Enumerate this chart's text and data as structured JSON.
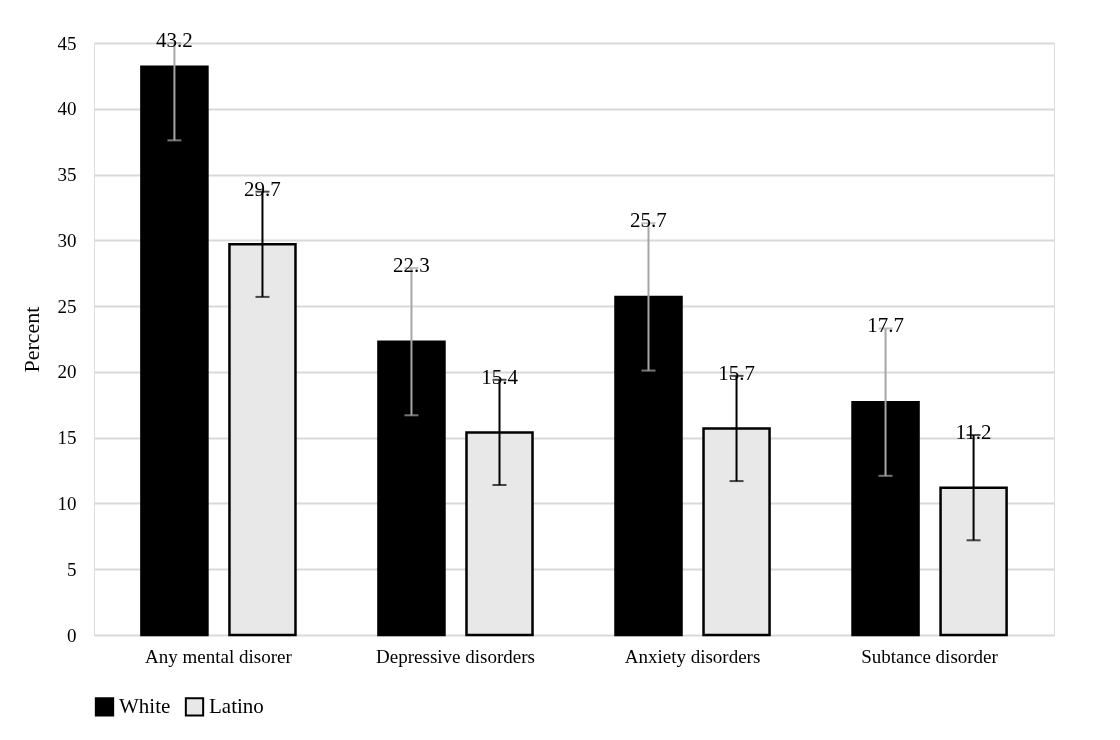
{
  "chart_data": {
    "type": "bar",
    "ylabel": "Percent",
    "categories": [
      "Any mental disorer",
      "Depressive disorders",
      "Anxiety disorders",
      "Subtance disorder"
    ],
    "series": [
      {
        "name": "White",
        "color": "#000000",
        "values": [
          43.2,
          22.3,
          25.7,
          17.7
        ],
        "errors": [
          [
            37.6,
            45
          ],
          5.6,
          5.6,
          5.6
        ]
      },
      {
        "name": "Latino",
        "color": "#e8e8e8",
        "values": [
          29.7,
          15.4,
          15.7,
          11.2
        ],
        "errors": [
          4.0,
          4.0,
          4.0,
          4.0
        ]
      }
    ],
    "ylim": [
      0,
      45
    ],
    "yticks": [
      0,
      5,
      10,
      15,
      20,
      25,
      30,
      35,
      40,
      45
    ],
    "grid": "y",
    "legend": "bottom",
    "data_labels": true
  }
}
